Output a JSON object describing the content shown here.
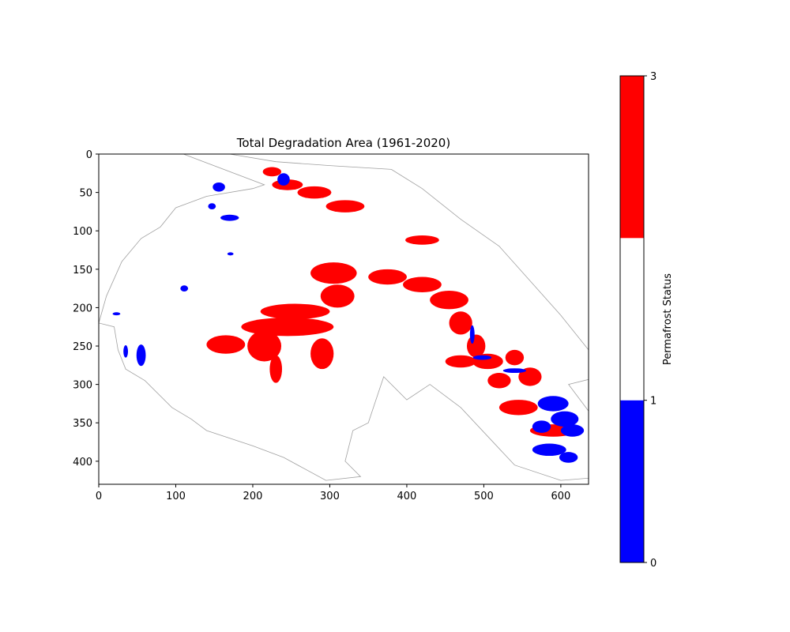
{
  "chart_data": {
    "type": "heatmap",
    "title": "Total Degradation Area (1961-2020)",
    "xlabel": "",
    "ylabel": "",
    "xlim": [
      0,
      636
    ],
    "ylim": [
      430,
      0
    ],
    "xticks": [
      0,
      100,
      200,
      300,
      400,
      500,
      600
    ],
    "yticks": [
      0,
      50,
      100,
      150,
      200,
      250,
      300,
      350,
      400
    ],
    "grid": false,
    "colorbar": {
      "label": "Permafrost Status",
      "range": [
        0,
        3
      ],
      "ticks": [
        0,
        1,
        3
      ],
      "bands": [
        {
          "from": 0,
          "to": 1,
          "color": "#0000ff"
        },
        {
          "from": 1,
          "to": 2,
          "color": "#ffffff"
        },
        {
          "from": 2,
          "to": 3,
          "color": "#ff0000"
        }
      ]
    },
    "outline": [
      [
        110,
        0
      ],
      [
        170,
        0
      ],
      [
        230,
        10
      ],
      [
        300,
        15
      ],
      [
        380,
        20
      ],
      [
        420,
        45
      ],
      [
        470,
        85
      ],
      [
        520,
        120
      ],
      [
        600,
        210
      ],
      [
        640,
        260
      ],
      [
        650,
        290
      ],
      [
        610,
        300
      ],
      [
        640,
        340
      ],
      [
        660,
        420
      ],
      [
        600,
        425
      ],
      [
        540,
        405
      ],
      [
        470,
        330
      ],
      [
        430,
        300
      ],
      [
        400,
        320
      ],
      [
        370,
        290
      ],
      [
        360,
        320
      ],
      [
        350,
        350
      ],
      [
        330,
        360
      ],
      [
        320,
        400
      ],
      [
        340,
        420
      ],
      [
        295,
        425
      ],
      [
        240,
        395
      ],
      [
        200,
        380
      ],
      [
        140,
        360
      ],
      [
        120,
        345
      ],
      [
        95,
        330
      ],
      [
        60,
        295
      ],
      [
        35,
        280
      ],
      [
        25,
        255
      ],
      [
        20,
        225
      ],
      [
        0,
        220
      ],
      [
        10,
        185
      ],
      [
        30,
        140
      ],
      [
        55,
        110
      ],
      [
        80,
        95
      ],
      [
        100,
        70
      ],
      [
        140,
        55
      ],
      [
        200,
        45
      ],
      [
        215,
        40
      ],
      [
        110,
        0
      ]
    ],
    "degraded_regions": [
      {
        "x": 225,
        "y": 23,
        "rx": 12,
        "ry": 6
      },
      {
        "x": 245,
        "y": 40,
        "rx": 20,
        "ry": 7
      },
      {
        "x": 280,
        "y": 50,
        "rx": 22,
        "ry": 8
      },
      {
        "x": 320,
        "y": 68,
        "rx": 25,
        "ry": 8
      },
      {
        "x": 420,
        "y": 112,
        "rx": 22,
        "ry": 6
      },
      {
        "x": 305,
        "y": 155,
        "rx": 30,
        "ry": 14
      },
      {
        "x": 310,
        "y": 185,
        "rx": 22,
        "ry": 15
      },
      {
        "x": 255,
        "y": 205,
        "rx": 45,
        "ry": 10
      },
      {
        "x": 245,
        "y": 225,
        "rx": 60,
        "ry": 12
      },
      {
        "x": 215,
        "y": 250,
        "rx": 22,
        "ry": 20
      },
      {
        "x": 165,
        "y": 248,
        "rx": 25,
        "ry": 12
      },
      {
        "x": 290,
        "y": 260,
        "rx": 15,
        "ry": 20
      },
      {
        "x": 230,
        "y": 280,
        "rx": 8,
        "ry": 18
      },
      {
        "x": 375,
        "y": 160,
        "rx": 25,
        "ry": 10
      },
      {
        "x": 420,
        "y": 170,
        "rx": 25,
        "ry": 10
      },
      {
        "x": 455,
        "y": 190,
        "rx": 25,
        "ry": 12
      },
      {
        "x": 470,
        "y": 220,
        "rx": 15,
        "ry": 15
      },
      {
        "x": 490,
        "y": 250,
        "rx": 12,
        "ry": 15
      },
      {
        "x": 470,
        "y": 270,
        "rx": 20,
        "ry": 8
      },
      {
        "x": 505,
        "y": 270,
        "rx": 20,
        "ry": 10
      },
      {
        "x": 520,
        "y": 295,
        "rx": 15,
        "ry": 10
      },
      {
        "x": 540,
        "y": 265,
        "rx": 12,
        "ry": 10
      },
      {
        "x": 560,
        "y": 290,
        "rx": 15,
        "ry": 12
      },
      {
        "x": 545,
        "y": 330,
        "rx": 25,
        "ry": 10
      },
      {
        "x": 590,
        "y": 360,
        "rx": 30,
        "ry": 8
      }
    ],
    "aggradation_regions": [
      {
        "x": 240,
        "y": 33,
        "rx": 8,
        "ry": 8
      },
      {
        "x": 156,
        "y": 43,
        "rx": 8,
        "ry": 6
      },
      {
        "x": 147,
        "y": 68,
        "rx": 5,
        "ry": 4
      },
      {
        "x": 170,
        "y": 83,
        "rx": 12,
        "ry": 4
      },
      {
        "x": 171,
        "y": 130,
        "rx": 4,
        "ry": 2
      },
      {
        "x": 111,
        "y": 175,
        "rx": 5,
        "ry": 4
      },
      {
        "x": 23,
        "y": 208,
        "rx": 5,
        "ry": 2
      },
      {
        "x": 55,
        "y": 262,
        "rx": 6,
        "ry": 14
      },
      {
        "x": 35,
        "y": 257,
        "rx": 3,
        "ry": 8
      },
      {
        "x": 590,
        "y": 325,
        "rx": 20,
        "ry": 10
      },
      {
        "x": 605,
        "y": 345,
        "rx": 18,
        "ry": 10
      },
      {
        "x": 575,
        "y": 355,
        "rx": 12,
        "ry": 8
      },
      {
        "x": 615,
        "y": 360,
        "rx": 15,
        "ry": 8
      },
      {
        "x": 585,
        "y": 385,
        "rx": 22,
        "ry": 8
      },
      {
        "x": 610,
        "y": 395,
        "rx": 12,
        "ry": 7
      },
      {
        "x": 540,
        "y": 282,
        "rx": 15,
        "ry": 3
      },
      {
        "x": 498,
        "y": 265,
        "rx": 12,
        "ry": 3
      },
      {
        "x": 485,
        "y": 235,
        "rx": 3,
        "ry": 12
      }
    ]
  }
}
